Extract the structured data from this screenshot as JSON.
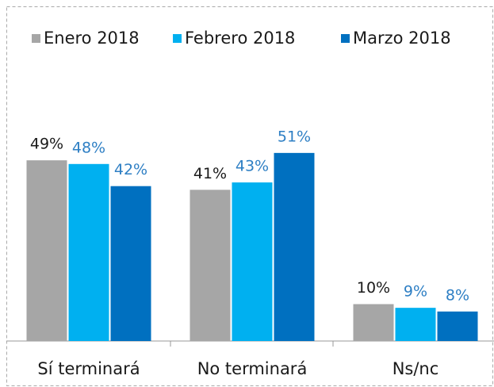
{
  "chart_data": {
    "type": "bar",
    "categories": [
      "Sí terminará",
      "No terminará",
      "Ns/nc"
    ],
    "series": [
      {
        "name": "Enero 2018",
        "color": "#a6a6a6",
        "label_color": "#1a1a1a",
        "values": [
          49,
          41,
          10
        ],
        "value_labels": [
          "49%",
          "41%",
          "10%"
        ]
      },
      {
        "name": "Febrero 2018",
        "color": "#00b0f0",
        "label_color": "#2e7fc4",
        "values": [
          48,
          43,
          9
        ],
        "value_labels": [
          "48%",
          "43%",
          "9%"
        ]
      },
      {
        "name": "Marzo 2018",
        "color": "#0070c0",
        "label_color": "#2e7fc4",
        "values": [
          42,
          51,
          8
        ],
        "value_labels": [
          "42%",
          "51%",
          "8%"
        ]
      }
    ],
    "legend": "top"
  }
}
